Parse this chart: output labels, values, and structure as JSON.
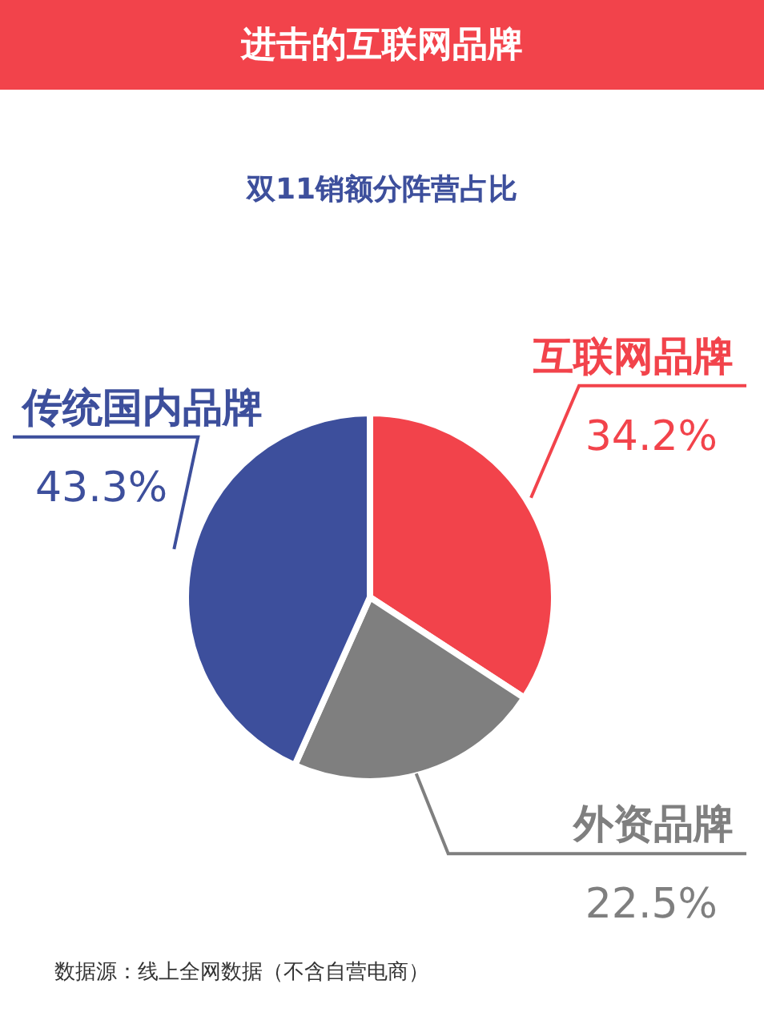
{
  "chart_data": {
    "type": "pie",
    "title": "进击的互联网品牌",
    "subtitle": "双11销额分阵营占比",
    "categories": [
      "互联网品牌",
      "外资品牌",
      "传统国内品牌"
    ],
    "values": [
      34.2,
      22.5,
      43.3
    ],
    "value_labels": [
      "34.2%",
      "22.5%",
      "43.3%"
    ],
    "colors": [
      "#f2434b",
      "#7f7f7f",
      "#3d4f9c"
    ],
    "annotations": [
      "数据源：线上全网数据（不含自营电商）"
    ]
  }
}
